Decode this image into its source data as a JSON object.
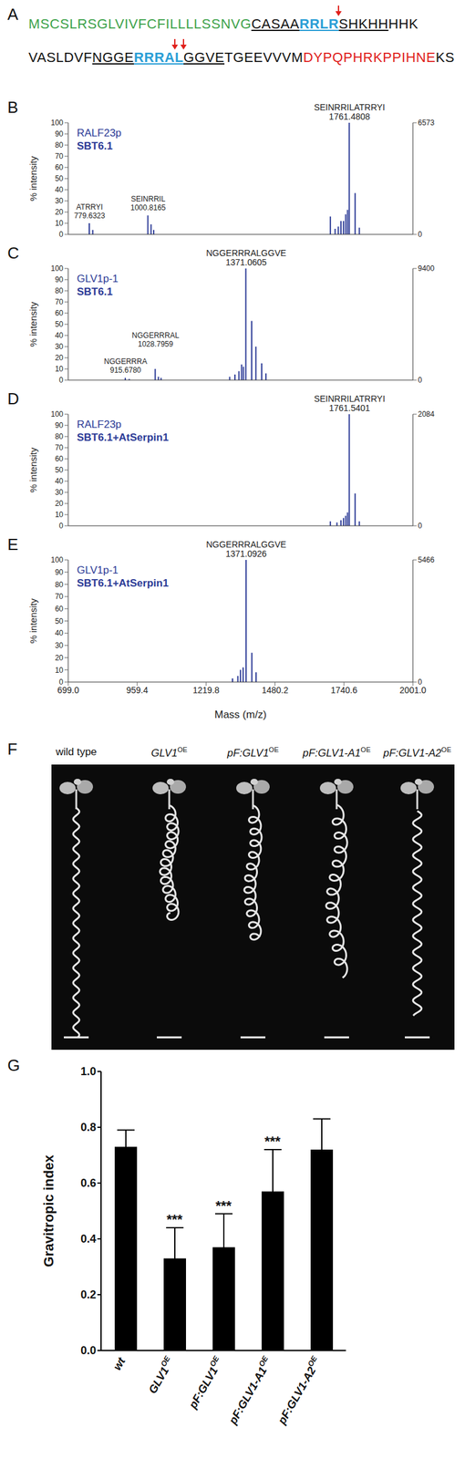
{
  "panel_labels": [
    "A",
    "B",
    "C",
    "D",
    "E",
    "F",
    "G"
  ],
  "sequence": {
    "lines": [
      [
        {
          "text": "MSCSLRSGLVIVFCFILLLLSSNVG",
          "color": "#3da24a"
        },
        {
          "text": "CASAA",
          "underline": true
        },
        {
          "text": "RRLR",
          "color": "#2a9ed6",
          "bold": true,
          "underline": true,
          "cleavage": true
        },
        {
          "text": "SHKHH",
          "underline": true
        },
        {
          "text": "HHK"
        }
      ],
      [
        {
          "text": "VASLDVF"
        },
        {
          "text": "NGGE",
          "underline": true
        },
        {
          "text": "RRRA",
          "color": "#2a9ed6",
          "bold": true,
          "underline": true,
          "cleavage": true
        },
        {
          "text": "L",
          "color": "#2a9ed6",
          "bold": true,
          "underline": true,
          "cleavage": true
        },
        {
          "text": "GGVE",
          "underline": true
        },
        {
          "text": "TGEEVVVM"
        },
        {
          "text": "DYPQPHRKPPIHNE",
          "color": "#e0201b"
        },
        {
          "text": "KS"
        }
      ]
    ]
  },
  "chart_data": [
    {
      "type": "spectrum",
      "title": "RALF23p",
      "subtitle": "SBT6.1",
      "ylabel": "% intensity",
      "color": "#2b3a96",
      "tick_labels": "y",
      "x": [
        779.6323,
        792.6,
        1000.8165,
        1012.8,
        1022.8,
        1690,
        1708,
        1720,
        1730,
        1740,
        1748,
        1755,
        1761.4808,
        1783.5,
        1799.5
      ],
      "values": [
        10,
        4,
        17,
        9,
        4,
        16,
        5,
        7,
        12,
        12,
        18,
        22,
        100,
        37,
        6
      ],
      "xlim": [
        699,
        2001
      ],
      "ylim": [
        0,
        100
      ],
      "yticks": [
        0,
        10,
        20,
        30,
        40,
        50,
        60,
        70,
        80,
        90,
        100
      ],
      "y2lim": [
        0,
        6573
      ],
      "y2ticks": [
        0,
        6573
      ],
      "annotations": [
        {
          "text": "ATRRYI",
          "x": 779.6323
        },
        {
          "text": "SEINRRIL",
          "x": 1000.8165
        },
        {
          "text": "SEINRRILATRRYI",
          "x": 1761.4808
        }
      ]
    },
    {
      "type": "spectrum",
      "title": "GLV1p-1",
      "subtitle": "SBT6.1",
      "ylabel": "% intensity",
      "color": "#2b3a96",
      "tick_labels": "y",
      "x": [
        915.678,
        930.7,
        1028.7959,
        1040.8,
        1050.8,
        1310,
        1330,
        1345,
        1355,
        1362,
        1371.0605,
        1393,
        1409,
        1431,
        1447
      ],
      "values": [
        2,
        1,
        10,
        3,
        2,
        3,
        5,
        8,
        14,
        12,
        100,
        53,
        30,
        15,
        6
      ],
      "xlim": [
        699,
        2001
      ],
      "ylim": [
        0,
        100
      ],
      "yticks": [
        0,
        10,
        20,
        30,
        40,
        50,
        60,
        70,
        80,
        90,
        100
      ],
      "y2lim": [
        0,
        9400
      ],
      "y2ticks": [
        0,
        9400
      ],
      "annotations": [
        {
          "text": "NGGERRRA",
          "x": 915.678,
          "label": "915.6780"
        },
        {
          "text": "NGGERRRAL",
          "x": 1028.7959
        },
        {
          "text": "NGGERRRALGGVE",
          "x": 1371.0605
        }
      ]
    },
    {
      "type": "spectrum",
      "title": "RALF23p",
      "subtitle": "SBT6.1+AtSerpin1",
      "ylabel": "% intensity",
      "color": "#2b3a96",
      "tick_labels": "y",
      "x": [
        1690,
        1715,
        1730,
        1740,
        1748,
        1755,
        1761.5401,
        1783.5,
        1799.5
      ],
      "values": [
        4,
        3,
        5,
        7,
        9,
        12,
        100,
        29,
        4
      ],
      "xlim": [
        699,
        2001
      ],
      "ylim": [
        0,
        100
      ],
      "yticks": [
        0,
        10,
        20,
        30,
        40,
        50,
        60,
        70,
        80,
        90,
        100
      ],
      "y2lim": [
        0,
        2084
      ],
      "y2ticks": [
        0,
        2084
      ],
      "annotations": [
        {
          "text": "SEINRRILATRRYI",
          "x": 1761.5401
        }
      ]
    },
    {
      "type": "spectrum",
      "title": "GLV1p-1",
      "subtitle": "SBT6.1+AtSerpin1",
      "ylabel": "% intensity",
      "xlabel": "Mass (m/z)",
      "color": "#2b3a96",
      "x": [
        1320,
        1340,
        1350,
        1360,
        1371.0926,
        1393,
        1409
      ],
      "values": [
        3,
        5,
        10,
        12,
        100,
        24,
        8
      ],
      "xlim": [
        699,
        2001
      ],
      "xticks": [
        {
          "value": 699,
          "label": "699.0"
        },
        959.4,
        1219.8,
        1480.2,
        1740.6,
        {
          "value": 2001,
          "label": "2001.0"
        }
      ],
      "ylim": [
        0,
        100
      ],
      "yticks": [
        0,
        10,
        20,
        30,
        40,
        50,
        60,
        70,
        80,
        90,
        100
      ],
      "y2lim": [
        0,
        5466
      ],
      "y2ticks": [
        0,
        5466
      ],
      "annotations": [
        {
          "text": "NGGERRRALGGVE",
          "x": 1371.0926
        }
      ]
    },
    {
      "type": "bar",
      "ylabel": "Gravitropic index",
      "color": "#000000",
      "categories": [
        "wt",
        "GLV1",
        "pF:GLV1",
        "pF:GLV1-A1",
        "pF:GLV1-A2"
      ],
      "category_superscripts": [
        null,
        "OE",
        "OE",
        "OE",
        "OE"
      ],
      "values": [
        0.73,
        0.33,
        0.37,
        0.57,
        0.72
      ],
      "errors": [
        0.06,
        0.11,
        0.12,
        0.15,
        0.11
      ],
      "significance": [
        null,
        "***",
        "***",
        "***",
        null
      ],
      "ylim": [
        0,
        1
      ],
      "yticks": [
        {
          "value": 0,
          "label": "0.0"
        },
        0.2,
        0.4,
        0.6,
        0.8,
        {
          "value": 1,
          "label": "1.0"
        }
      ]
    }
  ],
  "photo": {
    "labels": [
      {
        "text": "wild type"
      },
      {
        "text": "GLV1",
        "sup": "OE"
      },
      {
        "text": "pF:GLV1",
        "sup": "OE"
      },
      {
        "text": "pF:GLV1-A1",
        "sup": "OE"
      },
      {
        "text": "pF:GLV1-A2",
        "sup": "OE"
      }
    ]
  }
}
